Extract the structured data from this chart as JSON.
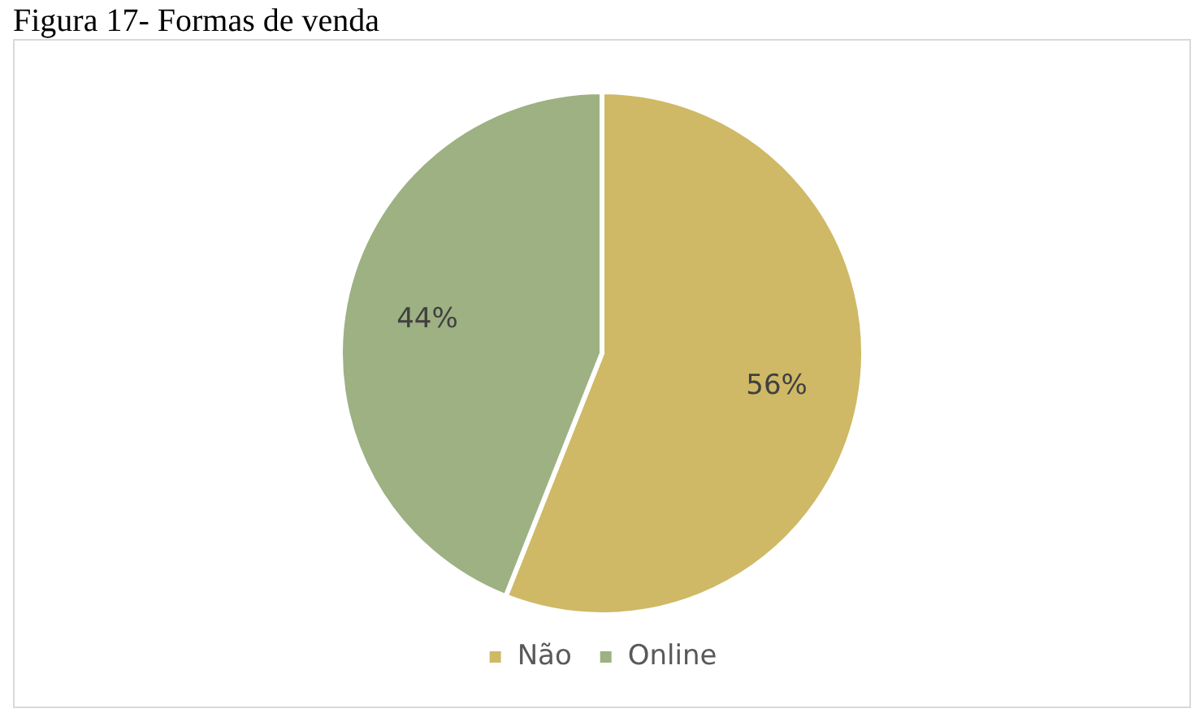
{
  "chart_data": {
    "type": "pie",
    "title": "Figura 17- Formas de venda",
    "categories": [
      "Não",
      "Online"
    ],
    "values": [
      56,
      44
    ],
    "colors": [
      "#cfb966",
      "#9db183"
    ],
    "value_labels": [
      "56%",
      "44%"
    ],
    "legend": "bottom"
  }
}
